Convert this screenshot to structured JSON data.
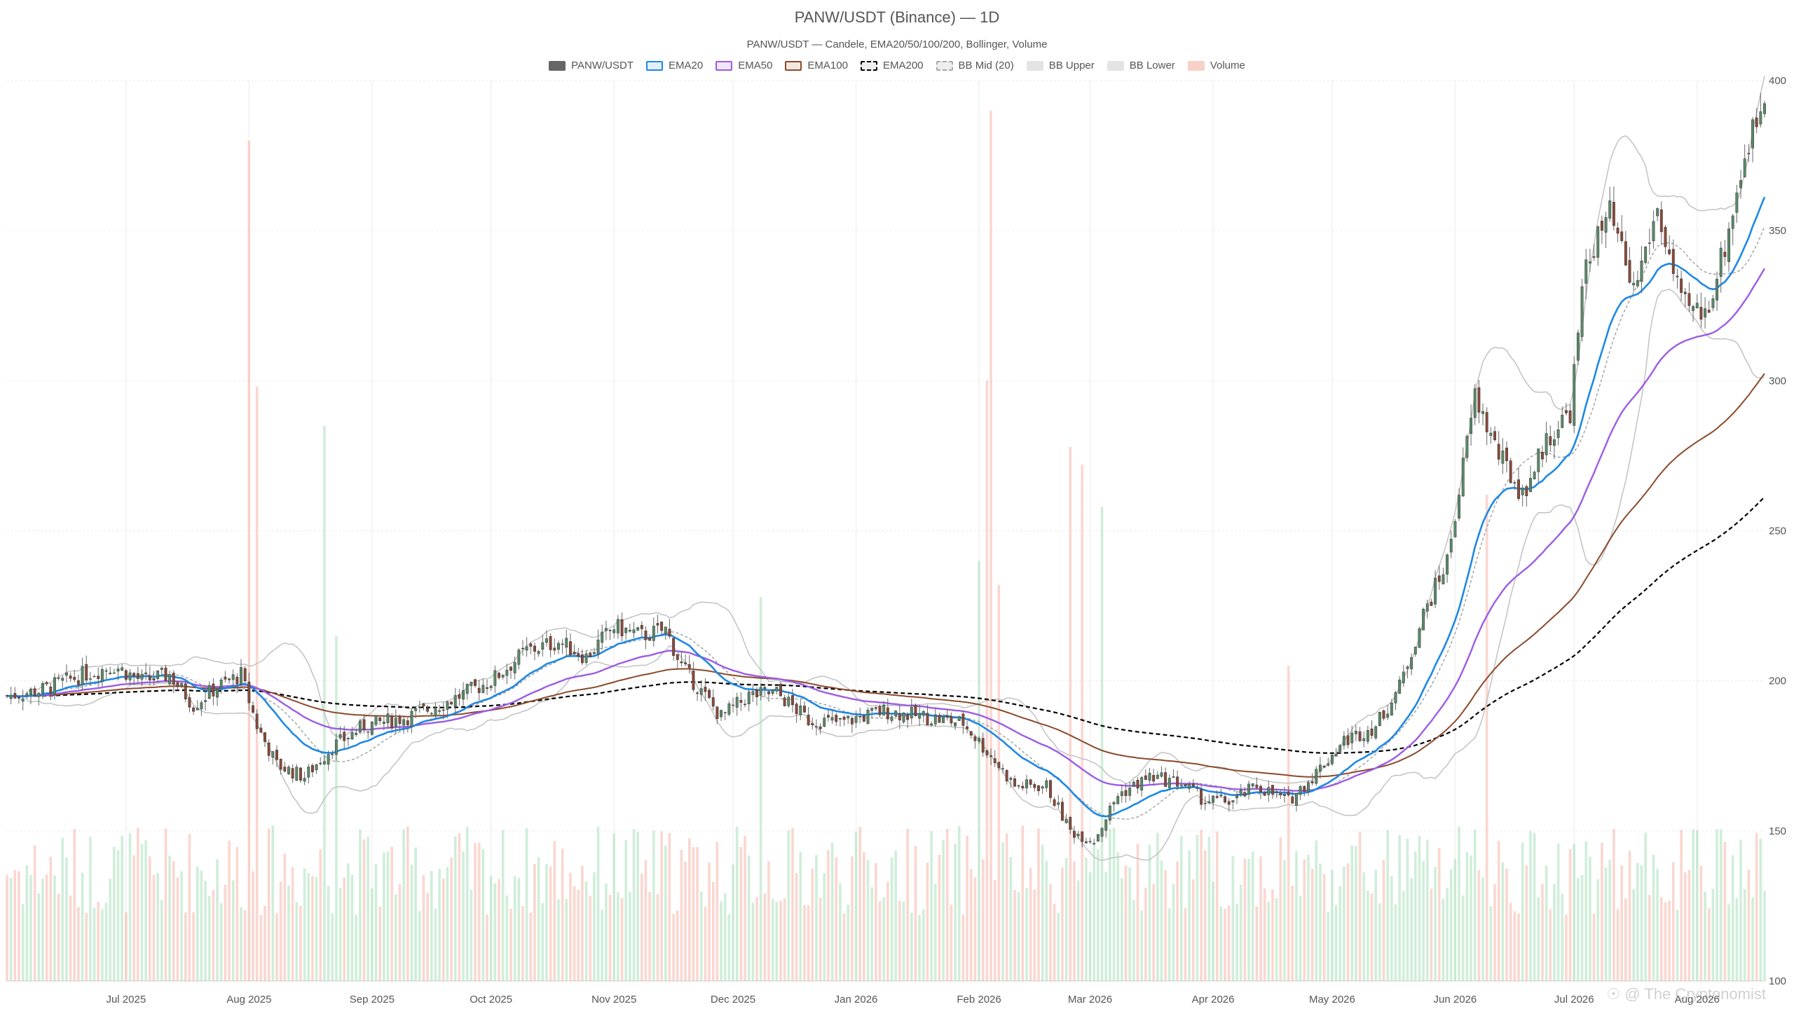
{
  "watermark": "☉ @ The Cryptonomist",
  "colors": {
    "up": "#5a8a6a",
    "down": "#8a4a3a",
    "wick": "#666666",
    "ema20": "#1e88e5",
    "ema50": "#9c5ce6",
    "ema100": "#8b4a2b",
    "ema200": "#000000",
    "bb_mid": "#999999",
    "bb_band": "#c2c2c2",
    "vol_up": "rgba(120,205,150,0.35)",
    "vol_down": "rgba(240,140,120,0.35)",
    "grid": "#ebebeb"
  },
  "chart_data": {
    "type": "candlestick",
    "title": "PANW/USDT (Binance) — 1D",
    "subtitle": "PANW/USDT — Candele, EMA20/50/100/200, Bollinger, Volume",
    "legend": [
      {
        "name": "PANW/USDT",
        "style": "candle"
      },
      {
        "name": "EMA20",
        "style": "ema20"
      },
      {
        "name": "EMA50",
        "style": "ema50"
      },
      {
        "name": "EMA100",
        "style": "ema100"
      },
      {
        "name": "EMA200",
        "style": "ema200"
      },
      {
        "name": "BB Mid (20)",
        "style": "bbmid"
      },
      {
        "name": "BB Upper",
        "style": "bbband"
      },
      {
        "name": "BB Lower",
        "style": "bbband"
      },
      {
        "name": "Volume",
        "style": "volume"
      }
    ],
    "legend_position": "top-center",
    "grid": true,
    "y_axis": {
      "position": "right",
      "ylim": [
        100,
        400
      ],
      "ticks": [
        100,
        150,
        200,
        250,
        300,
        350,
        400
      ]
    },
    "x_axis": {
      "start": "2025-06-01",
      "end": "2026-08-18",
      "ticks": [
        {
          "label": "Jul 2025",
          "date": "2025-07-01"
        },
        {
          "label": "Aug 2025",
          "date": "2025-08-01"
        },
        {
          "label": "Sep 2025",
          "date": "2025-09-01"
        },
        {
          "label": "Oct 2025",
          "date": "2025-10-01"
        },
        {
          "label": "Nov 2025",
          "date": "2025-11-01"
        },
        {
          "label": "Dec 2025",
          "date": "2025-12-01"
        },
        {
          "label": "Jan 2026",
          "date": "2026-01-01"
        },
        {
          "label": "Feb 2026",
          "date": "2026-02-01"
        },
        {
          "label": "Mar 2026",
          "date": "2026-03-01"
        },
        {
          "label": "Apr 2026",
          "date": "2026-04-01"
        },
        {
          "label": "May 2026",
          "date": "2026-05-01"
        },
        {
          "label": "Jun 2026",
          "date": "2026-06-01"
        },
        {
          "label": "Jul 2026",
          "date": "2026-07-01"
        },
        {
          "label": "Aug 2026",
          "date": "2026-08-01"
        }
      ]
    },
    "close_path": [
      [
        "2025-06-01",
        195
      ],
      [
        "2025-06-10",
        197
      ],
      [
        "2025-06-20",
        202
      ],
      [
        "2025-06-28",
        205
      ],
      [
        "2025-07-05",
        200
      ],
      [
        "2025-07-12",
        202
      ],
      [
        "2025-07-18",
        192
      ],
      [
        "2025-07-24",
        198
      ],
      [
        "2025-07-30",
        202
      ],
      [
        "2025-08-03",
        185
      ],
      [
        "2025-08-08",
        172
      ],
      [
        "2025-08-15",
        168
      ],
      [
        "2025-08-22",
        178
      ],
      [
        "2025-08-30",
        185
      ],
      [
        "2025-09-10",
        188
      ],
      [
        "2025-09-20",
        193
      ],
      [
        "2025-10-01",
        200
      ],
      [
        "2025-10-10",
        210
      ],
      [
        "2025-10-18",
        213
      ],
      [
        "2025-10-25",
        208
      ],
      [
        "2025-11-01",
        218
      ],
      [
        "2025-11-08",
        215
      ],
      [
        "2025-11-14",
        217
      ],
      [
        "2025-11-18",
        205
      ],
      [
        "2025-11-22",
        198
      ],
      [
        "2025-11-28",
        188
      ],
      [
        "2025-12-05",
        195
      ],
      [
        "2025-12-12",
        196
      ],
      [
        "2025-12-20",
        187
      ],
      [
        "2025-12-28",
        186
      ],
      [
        "2026-01-08",
        190
      ],
      [
        "2026-01-18",
        188
      ],
      [
        "2026-01-28",
        186
      ],
      [
        "2026-02-04",
        175
      ],
      [
        "2026-02-10",
        165
      ],
      [
        "2026-02-18",
        165
      ],
      [
        "2026-02-24",
        150
      ],
      [
        "2026-03-02",
        147
      ],
      [
        "2026-03-08",
        162
      ],
      [
        "2026-03-16",
        168
      ],
      [
        "2026-03-24",
        166
      ],
      [
        "2026-03-30",
        160
      ],
      [
        "2026-04-06",
        160
      ],
      [
        "2026-04-12",
        165
      ],
      [
        "2026-04-20",
        160
      ],
      [
        "2026-04-26",
        168
      ],
      [
        "2026-05-04",
        180
      ],
      [
        "2026-05-12",
        185
      ],
      [
        "2026-05-18",
        198
      ],
      [
        "2026-05-24",
        222
      ],
      [
        "2026-05-30",
        240
      ],
      [
        "2026-06-06",
        295
      ],
      [
        "2026-06-12",
        275
      ],
      [
        "2026-06-18",
        262
      ],
      [
        "2026-06-24",
        280
      ],
      [
        "2026-06-30",
        290
      ],
      [
        "2026-07-04",
        340
      ],
      [
        "2026-07-10",
        355
      ],
      [
        "2026-07-16",
        330
      ],
      [
        "2026-07-22",
        357
      ],
      [
        "2026-07-28",
        325
      ],
      [
        "2026-08-03",
        322
      ],
      [
        "2026-08-08",
        345
      ],
      [
        "2026-08-13",
        375
      ],
      [
        "2026-08-18",
        395
      ]
    ],
    "volume_spikes": [
      [
        "2025-08-01",
        380
      ],
      [
        "2025-08-03",
        298
      ],
      [
        "2025-08-20",
        285
      ],
      [
        "2025-08-23",
        215
      ],
      [
        "2025-12-08",
        228
      ],
      [
        "2026-02-01",
        240
      ],
      [
        "2026-02-03",
        300
      ],
      [
        "2026-02-04",
        390
      ],
      [
        "2026-02-06",
        232
      ],
      [
        "2026-02-24",
        278
      ],
      [
        "2026-02-27",
        272
      ],
      [
        "2026-03-04",
        258
      ],
      [
        "2026-04-20",
        205
      ],
      [
        "2026-06-09",
        262
      ]
    ]
  }
}
